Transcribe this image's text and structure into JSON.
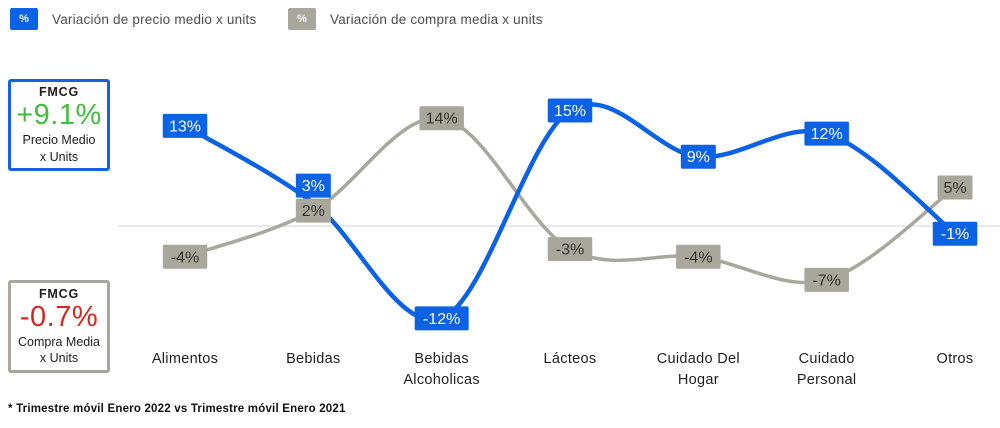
{
  "legend": {
    "items": [
      {
        "symbol": "%",
        "label": "Variación de precio medio x units",
        "color": "#0b62e4"
      },
      {
        "symbol": "%",
        "label": "Variación de compra media x units",
        "color": "#a9a69c"
      }
    ]
  },
  "stat_cards": [
    {
      "title": "FMCG",
      "value": "+9.1%",
      "sub1": "Precio Medio",
      "sub2": "x Units",
      "value_color": "#3fbe3c",
      "border_color": "#1560e8"
    },
    {
      "title": "FMCG",
      "value": "-0.7%",
      "sub1": "Compra Media",
      "sub2": "x Units",
      "value_color": "#d6281e",
      "border_color": "#a9a69c"
    }
  ],
  "chart_data": {
    "type": "line",
    "categories": [
      "Alimentos",
      "Bebidas",
      "Bebidas Alcoholicas",
      "Lácteos",
      "Cuidado Del Hogar",
      "Cuidado Personal",
      "Otros"
    ],
    "series": [
      {
        "name": "Variación de precio medio x units",
        "color": "#0b62e4",
        "label_text_color": "#ffffff",
        "values": [
          13,
          3,
          -12,
          15,
          9,
          12,
          -1
        ]
      },
      {
        "name": "Variación de compra media x units",
        "color": "#a9a69c",
        "label_text_color": "#33322e",
        "values": [
          -4,
          2,
          14,
          -3,
          -4,
          -7,
          5
        ]
      }
    ],
    "value_suffix": "%",
    "baseline": 0,
    "smooth": true,
    "grid": "zero-line-only",
    "legend_position": "top-left",
    "zero_line_color": "#dcdcdc"
  },
  "footnote": {
    "text": "* Trimestre móvil Enero 2022 vs Trimestre móvil Enero 2021"
  }
}
